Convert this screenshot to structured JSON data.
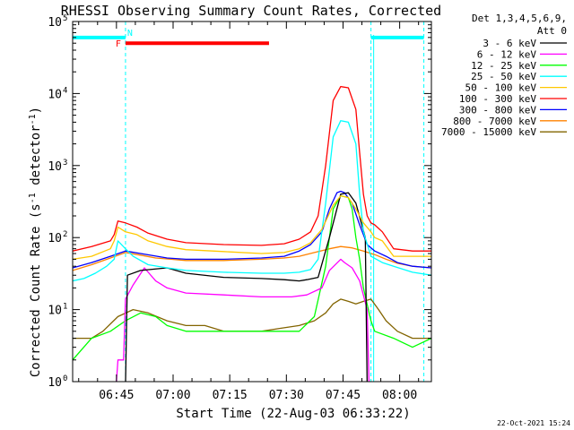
{
  "chart_data": {
    "type": "line",
    "title": "RHESSI Observing Summary Count Rates, Corrected",
    "xlabel": "Start Time (22-Aug-03 06:33:22)",
    "ylabel": "Corrected Count Rate (s",
    "ylabel_sup": "-1",
    "ylabel_mid": " detector",
    "ylabel_sup2": "-1",
    "ylabel_end": ")",
    "x_unit": "minutes after 06:33:22",
    "xlim": [
      0,
      95
    ],
    "ylim": [
      1,
      100000
    ],
    "yscale": "log",
    "x_ticks": [
      {
        "value": 11.6,
        "label": "06:45"
      },
      {
        "value": 26.6,
        "label": "07:00"
      },
      {
        "value": 41.6,
        "label": "07:15"
      },
      {
        "value": 56.6,
        "label": "07:30"
      },
      {
        "value": 71.6,
        "label": "07:45"
      },
      {
        "value": 86.6,
        "label": "08:00"
      }
    ],
    "y_ticks": [
      {
        "value": 1,
        "base": "10",
        "exp": "0"
      },
      {
        "value": 10,
        "base": "10",
        "exp": "1"
      },
      {
        "value": 100,
        "base": "10",
        "exp": "2"
      },
      {
        "value": 1000,
        "base": "10",
        "exp": "3"
      },
      {
        "value": 10000,
        "base": "10",
        "exp": "4"
      },
      {
        "value": 100000,
        "base": "10",
        "exp": "5"
      }
    ],
    "legend_header": [
      "Det 1,3,4,5,6,9,",
      "Att 0"
    ],
    "series": [
      {
        "name": "3 - 6 keV",
        "color": "#000000",
        "x": [
          0,
          14,
          14.5,
          18,
          25,
          30,
          40,
          50,
          56,
          60,
          62,
          65,
          68,
          71,
          73,
          75,
          77.5,
          78,
          95
        ],
        "y": [
          0,
          0,
          30,
          35,
          38,
          32,
          28,
          27,
          26,
          25,
          26,
          28,
          100,
          400,
          420,
          300,
          100,
          0,
          0
        ]
      },
      {
        "name": "6 - 12 keV",
        "color": "#ff00ff",
        "x": [
          0,
          11.5,
          12,
          13.5,
          14,
          16,
          19,
          22,
          25,
          30,
          40,
          50,
          58,
          62,
          66,
          68,
          71,
          72,
          74,
          76,
          78,
          78.5,
          95
        ],
        "y": [
          0,
          0,
          2,
          2,
          14,
          22,
          38,
          25,
          20,
          17,
          16,
          15,
          15,
          16,
          20,
          35,
          50,
          45,
          38,
          25,
          10,
          0,
          0
        ]
      },
      {
        "name": "12 - 25 keV",
        "color": "#00ff00",
        "x": [
          0,
          5,
          10,
          14,
          18,
          22,
          25,
          30,
          40,
          50,
          60,
          64,
          67,
          69,
          71,
          73,
          74,
          75,
          76,
          77,
          79,
          80,
          85,
          90,
          95
        ],
        "y": [
          2,
          4,
          5,
          7,
          9,
          8,
          6,
          5,
          5,
          5,
          5,
          8,
          40,
          250,
          380,
          360,
          250,
          100,
          50,
          20,
          7,
          5,
          4,
          3,
          4
        ]
      },
      {
        "name": "25 - 50 keV",
        "color": "#00ffff",
        "x": [
          0,
          3,
          6,
          9,
          11,
          12,
          14,
          16,
          20,
          25,
          30,
          40,
          50,
          56,
          60,
          63,
          65,
          67,
          69,
          71,
          73,
          75,
          76,
          77,
          79,
          82,
          85,
          90,
          95
        ],
        "y": [
          25,
          27,
          32,
          40,
          50,
          90,
          70,
          55,
          42,
          38,
          35,
          33,
          32,
          32,
          33,
          36,
          50,
          300,
          2500,
          4200,
          4000,
          2000,
          400,
          120,
          55,
          45,
          40,
          33,
          30
        ]
      },
      {
        "name": "50 - 100 keV",
        "color": "#ffc800",
        "x": [
          0,
          5,
          10,
          11,
          12,
          14,
          17,
          20,
          25,
          30,
          40,
          50,
          56,
          60,
          63,
          66,
          69,
          71,
          73,
          75,
          77,
          79,
          80,
          82,
          85,
          90,
          95
        ],
        "y": [
          50,
          55,
          70,
          90,
          140,
          120,
          110,
          90,
          75,
          68,
          64,
          60,
          62,
          70,
          85,
          130,
          280,
          380,
          360,
          250,
          160,
          120,
          100,
          90,
          55,
          55,
          55
        ]
      },
      {
        "name": "100 - 300 keV",
        "color": "#ff0000",
        "x": [
          0,
          5,
          10,
          11,
          12,
          14,
          17,
          20,
          25,
          30,
          40,
          50,
          56,
          60,
          63,
          65,
          67,
          69,
          71,
          73,
          75,
          76,
          77,
          78,
          79,
          80,
          82,
          85,
          90,
          95
        ],
        "y": [
          65,
          75,
          90,
          110,
          170,
          160,
          140,
          115,
          95,
          85,
          80,
          78,
          82,
          95,
          120,
          200,
          1000,
          8000,
          12500,
          12000,
          6000,
          1500,
          400,
          200,
          160,
          150,
          120,
          70,
          65,
          65
        ]
      },
      {
        "name": "300 - 800 keV",
        "color": "#0000ff",
        "x": [
          0,
          5,
          10,
          14,
          18,
          25,
          30,
          40,
          50,
          56,
          60,
          63,
          66,
          68,
          70,
          71,
          72,
          74,
          76,
          78,
          80,
          83,
          86,
          90,
          95
        ],
        "y": [
          38,
          45,
          55,
          65,
          60,
          52,
          50,
          50,
          52,
          55,
          65,
          80,
          120,
          250,
          420,
          440,
          420,
          300,
          150,
          80,
          65,
          55,
          45,
          40,
          38
        ]
      },
      {
        "name": "800 - 7000 keV",
        "color": "#ff8200",
        "x": [
          0,
          5,
          10,
          14,
          18,
          22,
          26,
          30,
          40,
          50,
          56,
          60,
          64,
          68,
          71,
          74,
          77,
          80,
          83,
          86,
          90,
          95
        ],
        "y": [
          35,
          42,
          52,
          62,
          57,
          52,
          50,
          48,
          48,
          50,
          52,
          55,
          62,
          70,
          75,
          72,
          65,
          58,
          50,
          44,
          40,
          38
        ]
      },
      {
        "name": "7000 - 15000 keV",
        "color": "#826400",
        "x": [
          0,
          3,
          5,
          8,
          12,
          16,
          20,
          25,
          30,
          35,
          40,
          45,
          50,
          55,
          60,
          64,
          67,
          69,
          71,
          73,
          75,
          77,
          79,
          81,
          83,
          86,
          90,
          95
        ],
        "y": [
          4,
          4,
          4,
          5,
          8,
          10,
          9,
          7,
          6,
          6,
          5,
          5,
          5,
          5.5,
          6,
          7,
          9,
          12,
          14,
          13,
          12,
          13,
          14,
          10,
          7,
          5,
          4,
          4
        ]
      }
    ],
    "flags": [
      {
        "label": "F",
        "color": "#ff0000",
        "x_start": 14,
        "x_end": 52
      },
      {
        "label": "N",
        "color": "#00ffff",
        "x_start": 14,
        "x_end": 14
      }
    ],
    "shading_intervals": [
      {
        "color": "#00ffff",
        "x_start": 0,
        "x_end": 14
      },
      {
        "color": "#00ffff",
        "x_start": 79,
        "x_end": 93
      }
    ],
    "vertical_markers": [
      14,
      79,
      93
    ],
    "footer_date": "22-Oct-2021 15:24"
  }
}
